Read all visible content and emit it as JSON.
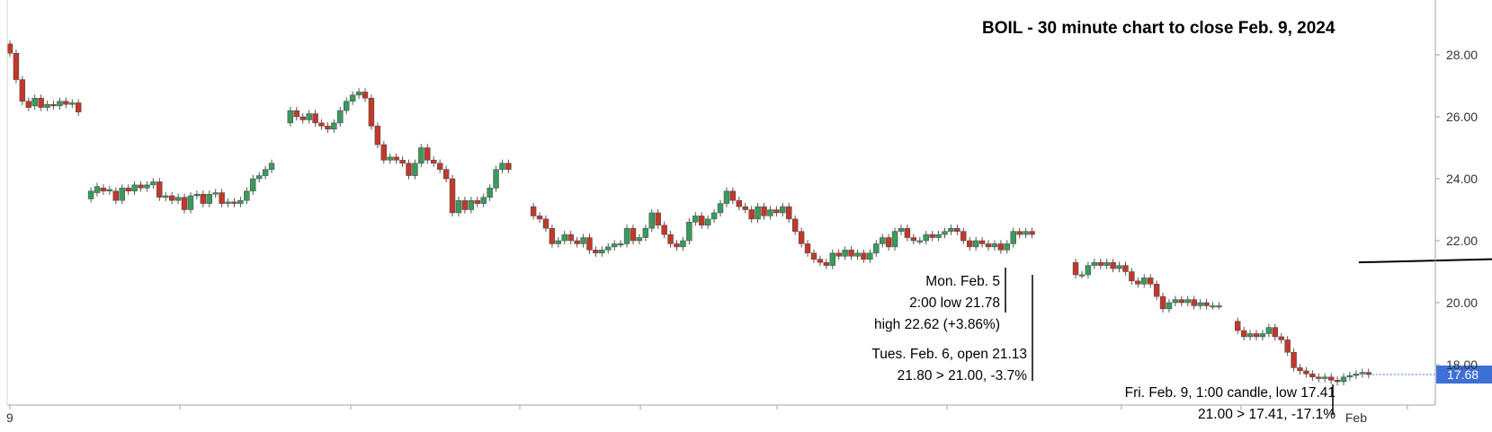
{
  "chart_data": {
    "type": "candlestick",
    "title": "BOIL - 30 minute chart to close Feb. 9, 2024",
    "ylim": [
      15.8,
      29.6
    ],
    "y_ticks": [
      "28.00",
      "26.00",
      "24.00",
      "22.00",
      "20.00",
      "18.00"
    ],
    "x_labels": [
      {
        "label": "9",
        "index": 0
      },
      {
        "label": "Feb",
        "index": 216
      }
    ],
    "last_price": {
      "label": "17.68",
      "value": 17.68
    },
    "colors": {
      "up": "#3a9a5c",
      "down": "#c0392b",
      "price_tag": "#3d6fd6",
      "axis": "#a0a0a0",
      "trendline": "#000000"
    },
    "sessions": [
      [
        [
          28.35,
          28.05
        ],
        [
          28.05,
          27.2
        ],
        [
          27.2,
          26.5
        ],
        [
          26.5,
          26.3
        ],
        [
          26.35,
          26.6
        ],
        [
          26.6,
          26.3
        ],
        [
          26.3,
          26.4
        ],
        [
          26.4,
          26.35
        ],
        [
          26.35,
          26.5
        ],
        [
          26.5,
          26.4
        ],
        [
          26.4,
          26.45
        ],
        [
          26.45,
          26.15
        ]
      ],
      [
        [
          23.35,
          23.6
        ],
        [
          23.55,
          23.75
        ],
        [
          23.7,
          23.6
        ],
        [
          23.6,
          23.65
        ],
        [
          23.6,
          23.3
        ],
        [
          23.3,
          23.7
        ],
        [
          23.7,
          23.6
        ],
        [
          23.6,
          23.8
        ],
        [
          23.8,
          23.7
        ],
        [
          23.7,
          23.8
        ],
        [
          23.8,
          23.9
        ],
        [
          23.9,
          23.4
        ],
        [
          23.4,
          23.45
        ],
        [
          23.45,
          23.3
        ],
        [
          23.3,
          23.4
        ],
        [
          23.4,
          23.0
        ],
        [
          23.0,
          23.45
        ],
        [
          23.45,
          23.5
        ],
        [
          23.5,
          23.2
        ],
        [
          23.2,
          23.5
        ],
        [
          23.5,
          23.55
        ],
        [
          23.55,
          23.2
        ],
        [
          23.2,
          23.25
        ],
        [
          23.25,
          23.2
        ],
        [
          23.2,
          23.3
        ],
        [
          23.3,
          23.6
        ],
        [
          23.6,
          24.0
        ],
        [
          24.0,
          24.1
        ],
        [
          24.1,
          24.3
        ],
        [
          24.3,
          24.5
        ]
      ],
      [
        [
          25.8,
          26.2
        ],
        [
          26.2,
          26.0
        ],
        [
          26.0,
          25.9
        ],
        [
          25.9,
          26.1
        ],
        [
          26.1,
          25.8
        ],
        [
          25.8,
          25.7
        ],
        [
          25.7,
          25.6
        ],
        [
          25.6,
          25.8
        ],
        [
          25.8,
          26.2
        ],
        [
          26.2,
          26.5
        ],
        [
          26.5,
          26.7
        ],
        [
          26.7,
          26.8
        ],
        [
          26.8,
          26.6
        ],
        [
          26.6,
          25.7
        ],
        [
          25.7,
          25.1
        ],
        [
          25.1,
          24.6
        ],
        [
          24.6,
          24.7
        ],
        [
          24.7,
          24.6
        ],
        [
          24.6,
          24.5
        ],
        [
          24.5,
          24.1
        ],
        [
          24.1,
          24.5
        ],
        [
          24.5,
          25.0
        ],
        [
          25.0,
          24.6
        ],
        [
          24.6,
          24.5
        ],
        [
          24.5,
          24.3
        ],
        [
          24.3,
          24.0
        ],
        [
          24.0,
          22.9
        ],
        [
          22.9,
          23.3
        ],
        [
          23.3,
          23.0
        ],
        [
          23.0,
          23.3
        ],
        [
          23.3,
          23.2
        ],
        [
          23.2,
          23.4
        ],
        [
          23.4,
          23.7
        ],
        [
          23.7,
          24.3
        ],
        [
          24.3,
          24.5
        ],
        [
          24.5,
          24.3
        ]
      ],
      [
        [
          23.1,
          22.8
        ],
        [
          22.8,
          22.7
        ],
        [
          22.7,
          22.4
        ],
        [
          22.4,
          21.9
        ],
        [
          21.9,
          22.0
        ],
        [
          22.0,
          22.2
        ],
        [
          22.2,
          22.0
        ],
        [
          22.0,
          21.9
        ],
        [
          21.9,
          22.1
        ],
        [
          22.1,
          21.7
        ],
        [
          21.7,
          21.6
        ],
        [
          21.6,
          21.7
        ],
        [
          21.7,
          21.8
        ],
        [
          21.8,
          21.9
        ],
        [
          21.9,
          21.9
        ],
        [
          21.9,
          22.4
        ],
        [
          22.4,
          22.0
        ],
        [
          22.0,
          22.1
        ],
        [
          22.1,
          22.4
        ],
        [
          22.4,
          22.9
        ],
        [
          22.9,
          22.5
        ],
        [
          22.5,
          22.2
        ],
        [
          22.2,
          21.9
        ],
        [
          21.9,
          21.8
        ],
        [
          21.8,
          22.0
        ],
        [
          22.0,
          22.6
        ],
        [
          22.6,
          22.8
        ],
        [
          22.8,
          22.5
        ],
        [
          22.5,
          22.7
        ],
        [
          22.7,
          22.9
        ],
        [
          22.9,
          23.2
        ],
        [
          23.2,
          23.6
        ],
        [
          23.6,
          23.3
        ],
        [
          23.3,
          23.1
        ],
        [
          23.1,
          23.0
        ],
        [
          23.0,
          22.7
        ],
        [
          22.7,
          23.1
        ],
        [
          23.1,
          22.8
        ],
        [
          22.8,
          23.0
        ],
        [
          23.0,
          22.9
        ],
        [
          22.9,
          23.1
        ],
        [
          23.1,
          22.7
        ],
        [
          22.7,
          22.3
        ],
        [
          22.3,
          21.9
        ],
        [
          21.9,
          21.6
        ],
        [
          21.6,
          21.4
        ],
        [
          21.4,
          21.3
        ],
        [
          21.3,
          21.2
        ],
        [
          21.2,
          21.6
        ],
        [
          21.6,
          21.5
        ],
        [
          21.5,
          21.7
        ],
        [
          21.7,
          21.5
        ],
        [
          21.5,
          21.6
        ],
        [
          21.6,
          21.4
        ],
        [
          21.4,
          21.6
        ],
        [
          21.6,
          21.9
        ],
        [
          21.9,
          22.1
        ],
        [
          22.1,
          21.8
        ],
        [
          21.8,
          22.3
        ],
        [
          22.3,
          22.4
        ],
        [
          22.4,
          22.1
        ],
        [
          22.1,
          22.0
        ],
        [
          22.0,
          22.0
        ],
        [
          22.0,
          22.2
        ],
        [
          22.2,
          22.1
        ],
        [
          22.1,
          22.2
        ],
        [
          22.2,
          22.3
        ],
        [
          22.3,
          22.4
        ],
        [
          22.4,
          22.3
        ],
        [
          22.3,
          22.0
        ],
        [
          22.0,
          21.8
        ],
        [
          21.8,
          22.0
        ],
        [
          22.0,
          21.9
        ],
        [
          21.9,
          21.8
        ],
        [
          21.8,
          21.9
        ],
        [
          21.9,
          21.7
        ],
        [
          21.7,
          21.9
        ],
        [
          21.9,
          22.3
        ],
        [
          22.3,
          22.2
        ],
        [
          22.2,
          22.3
        ],
        [
          22.3,
          22.2
        ]
      ],
      [
        [
          21.3,
          20.9
        ],
        [
          20.9,
          20.9
        ],
        [
          20.9,
          21.2
        ],
        [
          21.2,
          21.3
        ],
        [
          21.3,
          21.2
        ],
        [
          21.2,
          21.3
        ],
        [
          21.3,
          21.1
        ],
        [
          21.1,
          21.2
        ],
        [
          21.2,
          21.0
        ],
        [
          21.0,
          20.7
        ],
        [
          20.7,
          20.6
        ],
        [
          20.6,
          20.8
        ],
        [
          20.8,
          20.6
        ],
        [
          20.6,
          20.2
        ],
        [
          20.2,
          19.8
        ],
        [
          19.8,
          20.0
        ],
        [
          20.0,
          20.1
        ],
        [
          20.1,
          20.0
        ],
        [
          20.0,
          20.1
        ],
        [
          20.1,
          19.9
        ],
        [
          19.9,
          20.0
        ],
        [
          20.0,
          19.9
        ],
        [
          19.9,
          19.9
        ],
        [
          19.9,
          19.9
        ]
      ],
      [
        [
          19.4,
          19.1
        ],
        [
          19.1,
          18.9
        ],
        [
          18.9,
          19.0
        ],
        [
          19.0,
          18.9
        ],
        [
          18.9,
          19.0
        ],
        [
          19.0,
          19.2
        ],
        [
          19.2,
          18.9
        ],
        [
          18.9,
          18.8
        ],
        [
          18.8,
          18.4
        ],
        [
          18.4,
          17.9
        ],
        [
          17.9,
          17.8
        ],
        [
          17.8,
          17.7
        ],
        [
          17.7,
          17.6
        ],
        [
          17.6,
          17.55
        ],
        [
          17.55,
          17.6
        ],
        [
          17.6,
          17.5
        ],
        [
          17.5,
          17.45
        ],
        [
          17.45,
          17.6
        ],
        [
          17.6,
          17.65
        ],
        [
          17.65,
          17.7
        ],
        [
          17.7,
          17.75
        ],
        [
          17.75,
          17.68
        ]
      ]
    ],
    "trendline": {
      "from": {
        "index": 216,
        "value": 21.3
      },
      "to": {
        "index": 340,
        "value": 21.9
      }
    },
    "annotations": [
      {
        "lines": [
          "Mon. Feb. 5",
          "2:00 low 21.78",
          "high 22.62 (+3.86%)"
        ]
      },
      {
        "lines": [
          "Tues. Feb. 6, open 21.13",
          "21.80 > 21.00, -3.7%"
        ]
      },
      {
        "lines": [
          "Fri. Feb. 9, 1:00 candle, low 17.41",
          "21.00 > 17.41, -17.1%"
        ]
      }
    ]
  }
}
